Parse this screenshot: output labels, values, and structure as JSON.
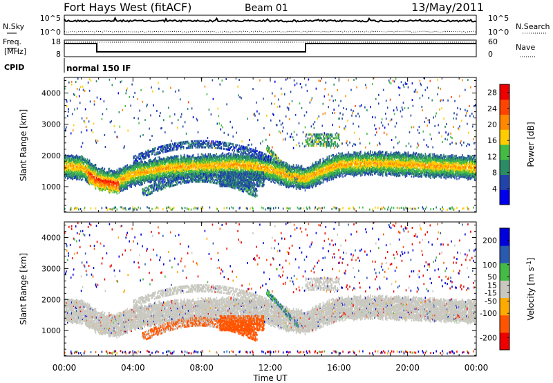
{
  "header": {
    "station": "Fort Hays West (fitACF)",
    "beam": "Beam 01",
    "date": "13/May/2011"
  },
  "status": {
    "nsky_label": "N.Sky",
    "nsearch_label": "N.Search",
    "freq_label_1": "Freq.",
    "freq_label_2": "[MHz]",
    "nave_label": "Nave",
    "cpid_label": "CPID",
    "noise_ticks": [
      "10^5",
      "10^0"
    ],
    "freq_ticks": [
      "18",
      "8"
    ],
    "nave_ticks": [
      "60",
      "0"
    ],
    "cpid_text": "normal 150 IF"
  },
  "colors": {
    "power": [
      "#0000ee",
      "#2244aa",
      "#2a8c64",
      "#44bb44",
      "#ffcc00",
      "#ff8800",
      "#ff4400",
      "#ee0000"
    ],
    "velocity": [
      "#ee0000",
      "#ff5500",
      "#ffaa00",
      "#c8c8c0",
      "#44bb44",
      "#2a5ab0",
      "#0000dd"
    ]
  },
  "chart_data": [
    {
      "type": "heatmap",
      "title": "Power",
      "ylabel": "Slant Range [km]",
      "xlabel": "Time UT",
      "x_ticks": [
        "00:00",
        "04:00",
        "08:00",
        "12:00",
        "16:00",
        "20:00",
        "00:00"
      ],
      "y_ticks": [
        1000,
        2000,
        3000,
        4000
      ],
      "ylim": [
        180,
        4500
      ],
      "xlim_hours": [
        0,
        24
      ],
      "colorbar": {
        "label": "Power [dB]",
        "ticks": [
          4,
          8,
          12,
          16,
          20,
          24,
          28
        ],
        "range": [
          0,
          30
        ]
      },
      "features": [
        {
          "name": "main band",
          "time_range_h": [
            0,
            24
          ],
          "range_km": [
            1300,
            2000
          ],
          "power_db": [
            4,
            20
          ]
        },
        {
          "name": "strong echoes",
          "time_range_h": [
            1.5,
            3
          ],
          "range_km": [
            800,
            1200
          ],
          "power_db": [
            20,
            28
          ]
        },
        {
          "name": "upper arc",
          "time_range_h": [
            4,
            12
          ],
          "range_km": [
            1800,
            2600
          ],
          "power_db": [
            4,
            8
          ]
        },
        {
          "name": "lower arc",
          "time_range_h": [
            4.5,
            11
          ],
          "range_km": [
            700,
            1500
          ],
          "power_db": [
            4,
            12
          ]
        }
      ]
    },
    {
      "type": "heatmap",
      "title": "Velocity",
      "ylabel": "Slant Range [km]",
      "xlabel": "Time UT",
      "x_ticks": [
        "00:00",
        "04:00",
        "08:00",
        "12:00",
        "16:00",
        "20:00",
        "00:00"
      ],
      "y_ticks": [
        1000,
        2000,
        3000,
        4000
      ],
      "ylim": [
        180,
        4500
      ],
      "xlim_hours": [
        0,
        24
      ],
      "colorbar": {
        "label": "Velocity [m s^-1]",
        "ticks": [
          200,
          100,
          50,
          15,
          -15,
          -50,
          -100,
          -200
        ],
        "range": [
          -250,
          250
        ]
      },
      "features": [
        {
          "name": "ground scatter band",
          "time_range_h": [
            0,
            24
          ],
          "range_km": [
            1300,
            2000
          ],
          "velocity_ms": [
            -15,
            15
          ]
        },
        {
          "name": "negative velocity patch",
          "time_range_h": [
            9,
            11.6
          ],
          "range_km": [
            1000,
            1500
          ],
          "velocity_ms": [
            -100,
            -50
          ]
        },
        {
          "name": "negative velocity arc",
          "time_range_h": [
            4.5,
            10
          ],
          "range_km": [
            700,
            1100
          ],
          "velocity_ms": [
            -100,
            -50
          ]
        },
        {
          "name": "positive velocity streak",
          "time_range_h": [
            11.8,
            13.5
          ],
          "range_km": [
            1000,
            2300
          ],
          "velocity_ms": [
            15,
            100
          ]
        }
      ]
    }
  ]
}
